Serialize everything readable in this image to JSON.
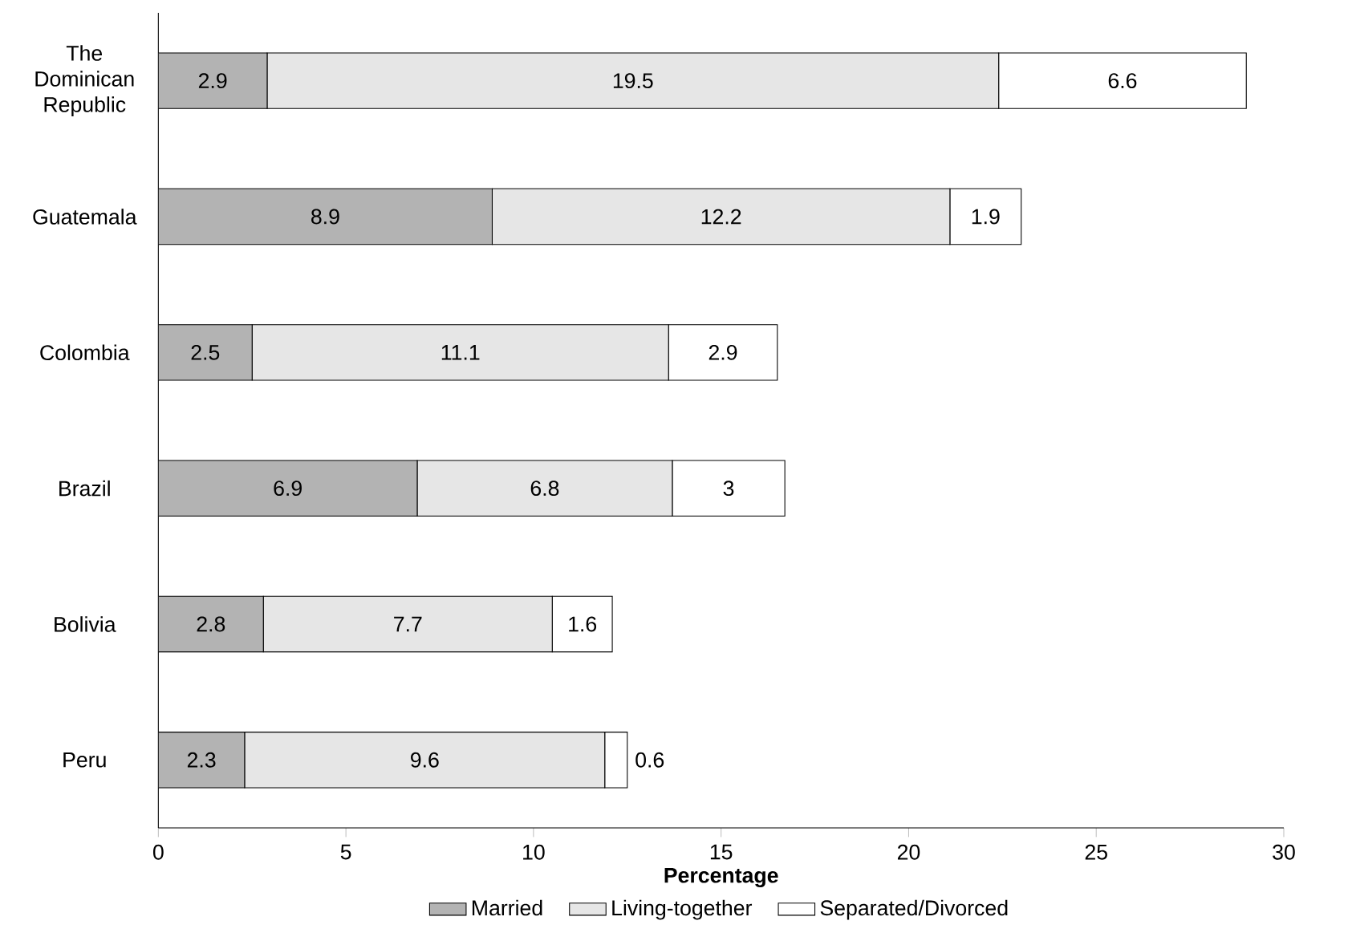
{
  "chart_data": {
    "type": "bar",
    "orientation": "horizontal",
    "stacked": true,
    "categories": [
      "The Dominican Republic",
      "Guatemala",
      "Colombia",
      "Brazil",
      "Bolivia",
      "Peru"
    ],
    "series": [
      {
        "name": "Married",
        "color": "#b3b3b3",
        "values": [
          2.9,
          8.9,
          2.5,
          6.9,
          2.8,
          2.3
        ]
      },
      {
        "name": "Living-together",
        "color": "#e6e6e6",
        "values": [
          19.5,
          12.2,
          11.1,
          6.8,
          7.7,
          9.6
        ]
      },
      {
        "name": "Separated/Divorced",
        "color": "#ffffff",
        "values": [
          6.6,
          1.9,
          2.9,
          3,
          1.6,
          0.6
        ]
      }
    ],
    "xlim": [
      0,
      30
    ],
    "xticks": [
      0,
      5,
      10,
      15,
      20,
      25,
      30
    ],
    "xlabel": "**Percentage**",
    "data_labels": true,
    "legend": "bottom",
    "grid": false
  }
}
